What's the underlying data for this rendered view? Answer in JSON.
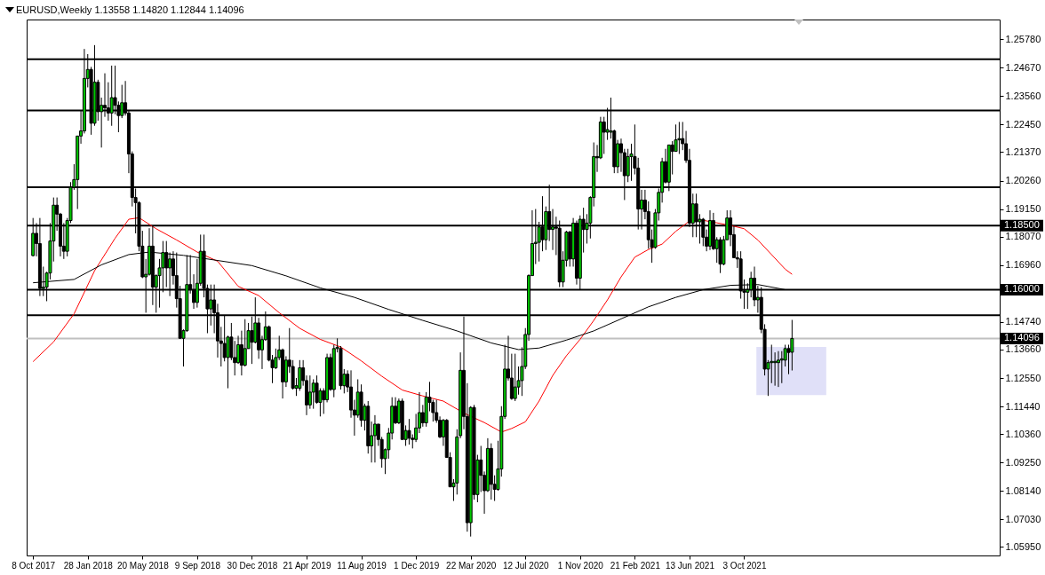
{
  "chart_data": {
    "type": "candlestick",
    "title": "EURUSD,Weekly  1.13558 1.14820 1.12844 1.14096",
    "colors": [
      "#00c800",
      "#000000",
      "#000000",
      "#00c800",
      "#00c800",
      "#00c800",
      "#00c800",
      "#000000",
      "#000000",
      "#000000",
      "#00c800",
      "#00c800",
      "#00c800",
      "#00c800",
      "#00c800",
      "#00c800",
      "#00c800",
      "#000000",
      "#00c800",
      "#000000",
      "#00c800",
      "#000000",
      "#000000",
      "#00c800",
      "#000000",
      "#000000",
      "#00c800",
      "#000000",
      "#000000",
      "#000000",
      "#000000",
      "#000000",
      "#000000",
      "#00c800",
      "#00c800",
      "#000000",
      "#00c800",
      "#00c800",
      "#00c800",
      "#000000",
      "#00c800",
      "#000000",
      "#000000",
      "#000000",
      "#00c800",
      "#00c800",
      "#000000",
      "#000000",
      "#00c800",
      "#00c800",
      "#000000",
      "#000000",
      "#00c800",
      "#000000",
      "#000000",
      "#000000",
      "#000000",
      "#00c800",
      "#000000",
      "#000000",
      "#00c800",
      "#000000",
      "#00c800",
      "#00c800",
      "#000000",
      "#00c800",
      "#000000",
      "#00c800",
      "#00c800",
      "#000000",
      "#000000",
      "#00c800",
      "#00c800",
      "#000000",
      "#00c800",
      "#000000",
      "#000000",
      "#00c800",
      "#00c800",
      "#000000",
      "#000000",
      "#00c800",
      "#00c800",
      "#000000",
      "#00c800",
      "#000000",
      "#00c800",
      "#000000",
      "#00c800",
      "#00c800",
      "#000000",
      "#00c800",
      "#000000",
      "#000000",
      "#000000",
      "#00c800",
      "#000000",
      "#00c800",
      "#000000",
      "#00c800",
      "#00c800",
      "#000000",
      "#000000",
      "#00c800",
      "#00c800",
      "#00c800",
      "#000000",
      "#00c800",
      "#000000",
      "#00c800",
      "#000000",
      "#000000",
      "#00c800",
      "#00c800",
      "#000000",
      "#00c800",
      "#000000",
      "#000000",
      "#000000",
      "#000000",
      "#00c800",
      "#000000",
      "#000000",
      "#00c800",
      "#00c800",
      "#00c800",
      "#000000",
      "#000000",
      "#00c800",
      "#000000",
      "#00c800",
      "#000000",
      "#000000",
      "#00c800",
      "#000000",
      "#000000",
      "#00c800",
      "#00c800",
      "#00c800",
      "#000000",
      "#000000",
      "#00c800",
      "#00c800",
      "#00c800",
      "#00c800",
      "#00c800",
      "#00c800",
      "#00c800",
      "#00c800",
      "#000000",
      "#00c800",
      "#000000",
      "#00c800",
      "#000000",
      "#000000",
      "#00c800",
      "#00c800",
      "#000000",
      "#00c800",
      "#000000",
      "#00c800",
      "#000000",
      "#00c800",
      "#00c800",
      "#00c800",
      "#000000",
      "#00c800",
      "#000000",
      "#00c800",
      "#00c800",
      "#000000",
      "#00c800",
      "#000000",
      "#000000",
      "#00c800",
      "#00c800",
      "#000000",
      "#000000",
      "#00c800",
      "#000000",
      "#000000",
      "#000000",
      "#00c800",
      "#00c800",
      "#00c800",
      "#000000",
      "#00c800",
      "#000000",
      "#00c800",
      "#00c800",
      "#000000",
      "#000000",
      "#000000",
      "#00c800",
      "#000000",
      "#00c800",
      "#000000",
      "#000000",
      "#00c800",
      "#000000",
      "#00c800",
      "#000000",
      "#00c800",
      "#00c800",
      "#000000",
      "#000000",
      "#000000",
      "#000000",
      "#000000",
      "#00c800",
      "#00c800",
      "#000000",
      "#00c800",
      "#000000",
      "#000000",
      "#00c800",
      "#00c800",
      "#00c800",
      "#00c800",
      "#00c800",
      "#00c800",
      "#000000",
      "#00c800"
    ],
    "x": [
      "2017-10-08",
      "2017-10-15",
      "2017-10-22",
      "2017-10-29",
      "2017-11-05",
      "2017-11-12",
      "2017-11-19",
      "2017-11-26",
      "2017-12-03",
      "2017-12-10",
      "2017-12-17",
      "2017-12-24",
      "2017-12-31",
      "2018-01-07",
      "2018-01-14",
      "2018-01-21",
      "2018-01-28",
      "2018-02-04",
      "2018-02-11",
      "2018-02-18",
      "2018-02-25",
      "2018-03-04",
      "2018-03-11",
      "2018-03-18",
      "2018-03-25",
      "2018-04-01",
      "2018-04-08",
      "2018-04-15",
      "2018-04-22",
      "2018-04-29",
      "2018-05-06",
      "2018-05-13",
      "2018-05-20",
      "2018-05-27",
      "2018-06-03",
      "2018-06-10",
      "2018-06-17",
      "2018-06-24",
      "2018-07-01",
      "2018-07-08",
      "2018-07-15",
      "2018-07-22",
      "2018-07-29",
      "2018-08-05",
      "2018-08-12",
      "2018-08-19",
      "2018-08-26",
      "2018-09-02",
      "2018-09-09",
      "2018-09-16",
      "2018-09-23",
      "2018-09-30",
      "2018-10-07",
      "2018-10-14",
      "2018-10-21",
      "2018-10-28",
      "2018-11-04",
      "2018-11-11",
      "2018-11-18",
      "2018-11-25",
      "2018-12-02",
      "2018-12-09",
      "2018-12-16",
      "2018-12-23",
      "2018-12-30",
      "2019-01-06",
      "2019-01-13",
      "2019-01-20",
      "2019-01-27",
      "2019-02-03",
      "2019-02-10",
      "2019-02-17",
      "2019-02-24",
      "2019-03-03",
      "2019-03-10",
      "2019-03-17",
      "2019-03-24",
      "2019-03-31",
      "2019-04-07",
      "2019-04-14",
      "2019-04-21",
      "2019-04-28",
      "2019-05-05",
      "2019-05-12",
      "2019-05-19",
      "2019-05-26",
      "2019-06-02",
      "2019-06-09",
      "2019-06-16",
      "2019-06-23",
      "2019-06-30",
      "2019-07-07",
      "2019-07-14",
      "2019-07-21",
      "2019-07-28",
      "2019-08-04",
      "2019-08-11",
      "2019-08-18",
      "2019-08-25",
      "2019-09-01",
      "2019-09-08",
      "2019-09-15",
      "2019-09-22",
      "2019-09-29",
      "2019-10-06",
      "2019-10-13",
      "2019-10-20",
      "2019-10-27",
      "2019-11-03",
      "2019-11-10",
      "2019-11-17",
      "2019-11-24",
      "2019-12-01",
      "2019-12-08",
      "2019-12-15",
      "2019-12-22",
      "2019-12-29",
      "2020-01-05",
      "2020-01-12",
      "2020-01-19",
      "2020-01-26",
      "2020-02-02",
      "2020-02-09",
      "2020-02-16",
      "2020-02-23",
      "2020-03-01",
      "2020-03-08",
      "2020-03-15",
      "2020-03-22",
      "2020-03-29",
      "2020-04-05",
      "2020-04-12",
      "2020-04-19",
      "2020-04-26",
      "2020-05-03",
      "2020-05-10",
      "2020-05-17",
      "2020-05-24",
      "2020-05-31",
      "2020-06-07",
      "2020-06-14",
      "2020-06-21",
      "2020-06-28",
      "2020-07-05",
      "2020-07-12",
      "2020-07-19",
      "2020-07-26",
      "2020-08-02",
      "2020-08-09",
      "2020-08-16",
      "2020-08-23",
      "2020-08-30",
      "2020-09-06",
      "2020-09-13",
      "2020-09-20",
      "2020-09-27",
      "2020-10-04",
      "2020-10-11",
      "2020-10-18",
      "2020-10-25",
      "2020-11-01",
      "2020-11-08",
      "2020-11-15",
      "2020-11-22",
      "2020-11-29",
      "2020-12-06",
      "2020-12-13",
      "2020-12-20",
      "2020-12-27",
      "2021-01-03",
      "2021-01-10",
      "2021-01-17",
      "2021-01-24",
      "2021-01-31",
      "2021-02-07",
      "2021-02-14",
      "2021-02-21",
      "2021-02-28",
      "2021-03-07",
      "2021-03-14",
      "2021-03-21",
      "2021-03-28",
      "2021-04-04",
      "2021-04-11",
      "2021-04-18",
      "2021-04-25",
      "2021-05-02",
      "2021-05-09",
      "2021-05-16",
      "2021-05-23",
      "2021-05-30",
      "2021-06-06",
      "2021-06-13",
      "2021-06-20",
      "2021-06-27",
      "2021-07-04",
      "2021-07-11",
      "2021-07-18",
      "2021-07-25",
      "2021-08-01",
      "2021-08-08",
      "2021-08-15",
      "2021-08-22",
      "2021-08-29",
      "2021-09-05",
      "2021-09-12",
      "2021-09-19",
      "2021-09-26",
      "2021-10-03",
      "2021-10-10",
      "2021-10-17",
      "2021-10-24",
      "2021-10-31",
      "2021-11-07",
      "2021-11-14",
      "2021-11-21",
      "2021-11-28",
      "2021-12-05",
      "2021-12-12",
      "2021-12-19",
      "2021-12-26",
      "2022-01-02",
      "2022-01-09"
    ],
    "ohlc": [
      [
        1.1733,
        1.188,
        1.173,
        1.182
      ],
      [
        1.182,
        1.186,
        1.173,
        1.178
      ],
      [
        1.178,
        1.188,
        1.1575,
        1.1605
      ],
      [
        1.1605,
        1.169,
        1.1575,
        1.161
      ],
      [
        1.161,
        1.167,
        1.1555,
        1.1665
      ],
      [
        1.1665,
        1.186,
        1.164,
        1.179
      ],
      [
        1.179,
        1.196,
        1.171,
        1.193
      ],
      [
        1.193,
        1.196,
        1.183,
        1.1895
      ],
      [
        1.1895,
        1.19,
        1.173,
        1.177
      ],
      [
        1.177,
        1.186,
        1.172,
        1.175
      ],
      [
        1.175,
        1.188,
        1.173,
        1.187
      ],
      [
        1.187,
        1.202,
        1.186,
        1.2
      ],
      [
        1.2,
        1.209,
        1.199,
        1.203
      ],
      [
        1.203,
        1.22,
        1.1915,
        1.22
      ],
      [
        1.22,
        1.23,
        1.217,
        1.222
      ],
      [
        1.222,
        1.254,
        1.221,
        1.2425
      ],
      [
        1.2425,
        1.252,
        1.239,
        1.246
      ],
      [
        1.246,
        1.247,
        1.2205,
        1.225
      ],
      [
        1.225,
        1.2555,
        1.224,
        1.241
      ],
      [
        1.241,
        1.242,
        1.226,
        1.2295
      ],
      [
        1.2295,
        1.235,
        1.2155,
        1.232
      ],
      [
        1.232,
        1.2445,
        1.2275,
        1.231
      ],
      [
        1.231,
        1.241,
        1.226,
        1.229
      ],
      [
        1.229,
        1.2475,
        1.224,
        1.235
      ],
      [
        1.235,
        1.2475,
        1.2285,
        1.232
      ],
      [
        1.232,
        1.2335,
        1.2215,
        1.228
      ],
      [
        1.228,
        1.24,
        1.227,
        1.233
      ],
      [
        1.233,
        1.2415,
        1.228,
        1.229
      ],
      [
        1.229,
        1.23,
        1.2055,
        1.213
      ],
      [
        1.213,
        1.214,
        1.1925,
        1.196
      ],
      [
        1.196,
        1.1995,
        1.182,
        1.194
      ],
      [
        1.194,
        1.1945,
        1.175,
        1.177
      ],
      [
        1.177,
        1.183,
        1.1645,
        1.165
      ],
      [
        1.165,
        1.172,
        1.151,
        1.166
      ],
      [
        1.166,
        1.184,
        1.1655,
        1.177
      ],
      [
        1.177,
        1.185,
        1.154,
        1.161
      ],
      [
        1.161,
        1.166,
        1.151,
        1.1655
      ],
      [
        1.1655,
        1.172,
        1.153,
        1.1685
      ],
      [
        1.1685,
        1.179,
        1.159,
        1.1745
      ],
      [
        1.1745,
        1.179,
        1.161,
        1.1685
      ],
      [
        1.1685,
        1.1745,
        1.1575,
        1.172
      ],
      [
        1.172,
        1.175,
        1.162,
        1.1655
      ],
      [
        1.1655,
        1.1745,
        1.153,
        1.1565
      ],
      [
        1.1565,
        1.1615,
        1.141,
        1.141
      ],
      [
        1.141,
        1.1445,
        1.13,
        1.144
      ],
      [
        1.144,
        1.1735,
        1.1435,
        1.162
      ],
      [
        1.162,
        1.1735,
        1.1585,
        1.16
      ],
      [
        1.16,
        1.166,
        1.1525,
        1.155
      ],
      [
        1.155,
        1.172,
        1.153,
        1.1625
      ],
      [
        1.1625,
        1.1815,
        1.1615,
        1.175
      ],
      [
        1.175,
        1.1815,
        1.157,
        1.1605
      ],
      [
        1.1605,
        1.162,
        1.143,
        1.1525
      ],
      [
        1.1525,
        1.162,
        1.146,
        1.156
      ],
      [
        1.156,
        1.162,
        1.143,
        1.151
      ],
      [
        1.151,
        1.1545,
        1.1335,
        1.14
      ],
      [
        1.14,
        1.1455,
        1.13,
        1.139
      ],
      [
        1.139,
        1.15,
        1.132,
        1.1335
      ],
      [
        1.1335,
        1.142,
        1.1215,
        1.1415
      ],
      [
        1.1415,
        1.147,
        1.1325,
        1.1335
      ],
      [
        1.1335,
        1.14,
        1.1265,
        1.1315
      ],
      [
        1.1315,
        1.142,
        1.131,
        1.1385
      ],
      [
        1.1385,
        1.144,
        1.1265,
        1.1305
      ],
      [
        1.1305,
        1.1485,
        1.13,
        1.137
      ],
      [
        1.137,
        1.147,
        1.137,
        1.144
      ],
      [
        1.144,
        1.1495,
        1.131,
        1.1395
      ],
      [
        1.1395,
        1.157,
        1.139,
        1.147
      ],
      [
        1.147,
        1.149,
        1.133,
        1.1365
      ],
      [
        1.1365,
        1.142,
        1.129,
        1.1405
      ],
      [
        1.1405,
        1.1515,
        1.14,
        1.1455
      ],
      [
        1.1455,
        1.146,
        1.132,
        1.1325
      ],
      [
        1.1325,
        1.1345,
        1.1235,
        1.1295
      ],
      [
        1.1295,
        1.137,
        1.129,
        1.1335
      ],
      [
        1.1335,
        1.142,
        1.1325,
        1.1365
      ],
      [
        1.1365,
        1.137,
        1.1175,
        1.124
      ],
      [
        1.124,
        1.134,
        1.122,
        1.1325
      ],
      [
        1.1325,
        1.145,
        1.1275,
        1.13
      ],
      [
        1.13,
        1.1325,
        1.121,
        1.1215
      ],
      [
        1.1215,
        1.1255,
        1.1185,
        1.1225
      ],
      [
        1.1215,
        1.1325,
        1.1205,
        1.1295
      ],
      [
        1.1295,
        1.1325,
        1.1225,
        1.1245
      ],
      [
        1.1245,
        1.1265,
        1.111,
        1.115
      ],
      [
        1.115,
        1.1265,
        1.1135,
        1.12
      ],
      [
        1.12,
        1.125,
        1.1135,
        1.1235
      ],
      [
        1.1235,
        1.1265,
        1.1155,
        1.116
      ],
      [
        1.116,
        1.1215,
        1.1105,
        1.1205
      ],
      [
        1.1205,
        1.1215,
        1.1115,
        1.117
      ],
      [
        1.117,
        1.135,
        1.116,
        1.1335
      ],
      [
        1.1335,
        1.135,
        1.1205,
        1.121
      ],
      [
        1.121,
        1.1385,
        1.118,
        1.137
      ],
      [
        1.137,
        1.141,
        1.1355,
        1.1375
      ],
      [
        1.137,
        1.138,
        1.121,
        1.1225
      ],
      [
        1.1225,
        1.129,
        1.1195,
        1.127
      ],
      [
        1.127,
        1.1285,
        1.12,
        1.122
      ],
      [
        1.122,
        1.1285,
        1.11,
        1.113
      ],
      [
        1.113,
        1.117,
        1.103,
        1.111
      ],
      [
        1.111,
        1.125,
        1.11,
        1.12
      ],
      [
        1.12,
        1.123,
        1.1065,
        1.109
      ],
      [
        1.109,
        1.1155,
        1.105,
        1.1145
      ],
      [
        1.1145,
        1.1165,
        1.096,
        1.099
      ],
      [
        1.099,
        1.1085,
        1.0925,
        1.103
      ],
      [
        1.103,
        1.111,
        1.0925,
        1.1075
      ],
      [
        1.1075,
        1.1075,
        1.099,
        1.1015
      ],
      [
        1.1015,
        1.1025,
        1.0905,
        1.094
      ],
      [
        1.094,
        1.098,
        1.088,
        1.0975
      ],
      [
        1.0975,
        1.106,
        1.094,
        1.104
      ],
      [
        1.104,
        1.118,
        1.1015,
        1.1145
      ],
      [
        1.1145,
        1.118,
        1.1075,
        1.108
      ],
      [
        1.108,
        1.1175,
        1.1075,
        1.1165
      ],
      [
        1.1165,
        1.1175,
        1.1015,
        1.1015
      ],
      [
        1.1015,
        1.107,
        1.099,
        1.105
      ],
      [
        1.105,
        1.1095,
        1.0995,
        1.102
      ],
      [
        1.102,
        1.1035,
        1.098,
        1.1015
      ],
      [
        1.1015,
        1.1115,
        1.1005,
        1.106
      ],
      [
        1.106,
        1.12,
        1.104,
        1.112
      ],
      [
        1.112,
        1.115,
        1.1065,
        1.108
      ],
      [
        1.108,
        1.12,
        1.1065,
        1.118
      ],
      [
        1.118,
        1.124,
        1.1125,
        1.116
      ],
      [
        1.116,
        1.117,
        1.1085,
        1.112
      ],
      [
        1.112,
        1.117,
        1.108,
        1.109
      ],
      [
        1.109,
        1.1105,
        1.102,
        1.1025
      ],
      [
        1.1025,
        1.1095,
        1.099,
        1.109
      ],
      [
        1.109,
        1.1095,
        1.0945,
        1.0945
      ],
      [
        1.0945,
        1.0965,
        1.083,
        1.083
      ],
      [
        1.083,
        1.086,
        1.0775,
        1.0845
      ],
      [
        1.0845,
        1.1055,
        1.08,
        1.1025
      ],
      [
        1.103,
        1.1355,
        1.102,
        1.1285
      ],
      [
        1.1285,
        1.1495,
        1.1055,
        1.1105
      ],
      [
        1.1105,
        1.1235,
        1.0655,
        1.069
      ],
      [
        1.069,
        1.1145,
        1.0636,
        1.114
      ],
      [
        1.114,
        1.115,
        1.078,
        1.08
      ],
      [
        1.08,
        1.0955,
        1.077,
        1.0935
      ],
      [
        1.0935,
        1.099,
        1.081,
        1.0875
      ],
      [
        1.0875,
        1.089,
        1.0725,
        1.0815
      ],
      [
        1.0815,
        1.102,
        1.081,
        1.098
      ],
      [
        1.098,
        1.1,
        1.078,
        1.084
      ],
      [
        1.084,
        1.0875,
        1.0775,
        1.082
      ],
      [
        1.082,
        1.101,
        1.0815,
        1.09
      ],
      [
        1.09,
        1.1145,
        1.087,
        1.1105
      ],
      [
        1.1105,
        1.1385,
        1.1095,
        1.129
      ],
      [
        1.129,
        1.142,
        1.1245,
        1.1255
      ],
      [
        1.1255,
        1.135,
        1.117,
        1.1175
      ],
      [
        1.1175,
        1.135,
        1.1165,
        1.122
      ],
      [
        1.122,
        1.13,
        1.119,
        1.1245
      ],
      [
        1.1245,
        1.1375,
        1.1185,
        1.13
      ],
      [
        1.13,
        1.145,
        1.129,
        1.1425
      ],
      [
        1.1425,
        1.166,
        1.14,
        1.1655
      ],
      [
        1.1655,
        1.191,
        1.1655,
        1.178
      ],
      [
        1.178,
        1.1915,
        1.17,
        1.1785
      ],
      [
        1.1785,
        1.1865,
        1.171,
        1.1845
      ],
      [
        1.1845,
        1.1965,
        1.175,
        1.1795
      ],
      [
        1.1795,
        1.1925,
        1.1755,
        1.1905
      ],
      [
        1.1905,
        1.201,
        1.179,
        1.1835
      ],
      [
        1.1835,
        1.1915,
        1.1755,
        1.1845
      ],
      [
        1.1845,
        1.1885,
        1.1735,
        1.184
      ],
      [
        1.184,
        1.187,
        1.161,
        1.163
      ],
      [
        1.163,
        1.175,
        1.161,
        1.1715
      ],
      [
        1.1715,
        1.183,
        1.169,
        1.1825
      ],
      [
        1.1825,
        1.183,
        1.169,
        1.172
      ],
      [
        1.172,
        1.188,
        1.169,
        1.186
      ],
      [
        1.186,
        1.187,
        1.162,
        1.1645
      ],
      [
        1.1645,
        1.189,
        1.16,
        1.1875
      ],
      [
        1.1875,
        1.192,
        1.1745,
        1.1835
      ],
      [
        1.1835,
        1.1895,
        1.178,
        1.186
      ],
      [
        1.186,
        1.1965,
        1.18,
        1.196
      ],
      [
        1.196,
        1.2175,
        1.1925,
        1.212
      ],
      [
        1.212,
        1.2165,
        1.206,
        1.2115
      ],
      [
        1.2115,
        1.2275,
        1.211,
        1.2255
      ],
      [
        1.2255,
        1.2275,
        1.213,
        1.2215
      ],
      [
        1.2215,
        1.231,
        1.2185,
        1.2225
      ],
      [
        1.2215,
        1.235,
        1.219,
        1.222
      ],
      [
        1.222,
        1.2225,
        1.2055,
        1.208
      ],
      [
        1.208,
        1.2185,
        1.2055,
        1.217
      ],
      [
        1.217,
        1.219,
        1.206,
        1.2135
      ],
      [
        1.2135,
        1.215,
        1.195,
        1.2045
      ],
      [
        1.2045,
        1.215,
        1.202,
        1.212
      ],
      [
        1.212,
        1.217,
        1.2025,
        1.213
      ],
      [
        1.212,
        1.2245,
        1.205,
        1.2075
      ],
      [
        1.2075,
        1.2115,
        1.1835,
        1.1915
      ],
      [
        1.1915,
        1.199,
        1.1835,
        1.195
      ],
      [
        1.195,
        1.199,
        1.1875,
        1.1905
      ],
      [
        1.1905,
        1.1945,
        1.176,
        1.1795
      ],
      [
        1.1795,
        1.1835,
        1.1705,
        1.1765
      ],
      [
        1.1765,
        1.1915,
        1.176,
        1.19
      ],
      [
        1.19,
        1.1995,
        1.187,
        1.198
      ],
      [
        1.198,
        1.2115,
        1.194,
        1.21
      ],
      [
        1.21,
        1.215,
        1.2015,
        1.202
      ],
      [
        1.202,
        1.2165,
        1.1985,
        1.2165
      ],
      [
        1.2165,
        1.218,
        1.205,
        1.214
      ],
      [
        1.214,
        1.2245,
        1.214,
        1.2185
      ],
      [
        1.2185,
        1.2255,
        1.213,
        1.219
      ],
      [
        1.219,
        1.2255,
        1.2145,
        1.217
      ],
      [
        1.217,
        1.222,
        1.2095,
        1.2105
      ],
      [
        1.2105,
        1.215,
        1.1845,
        1.186
      ],
      [
        1.186,
        1.1975,
        1.1805,
        1.1935
      ],
      [
        1.1935,
        1.1975,
        1.1805,
        1.1865
      ],
      [
        1.1865,
        1.1895,
        1.178,
        1.1875
      ],
      [
        1.1875,
        1.188,
        1.177,
        1.1805
      ],
      [
        1.1805,
        1.1835,
        1.175,
        1.177
      ],
      [
        1.177,
        1.191,
        1.1755,
        1.187
      ],
      [
        1.187,
        1.19,
        1.1755,
        1.176
      ],
      [
        1.176,
        1.1805,
        1.1705,
        1.1795
      ],
      [
        1.1795,
        1.1805,
        1.1665,
        1.17
      ],
      [
        1.17,
        1.181,
        1.1695,
        1.1795
      ],
      [
        1.1795,
        1.191,
        1.1795,
        1.188
      ],
      [
        1.188,
        1.191,
        1.177,
        1.1815
      ],
      [
        1.1815,
        1.185,
        1.1725,
        1.1725
      ],
      [
        1.1725,
        1.175,
        1.1685,
        1.172
      ],
      [
        1.172,
        1.175,
        1.1565,
        1.1595
      ],
      [
        1.1595,
        1.164,
        1.1525,
        1.159
      ],
      [
        1.159,
        1.1625,
        1.1525,
        1.16
      ],
      [
        1.16,
        1.167,
        1.157,
        1.1645
      ],
      [
        1.1645,
        1.169,
        1.1535,
        1.156
      ],
      [
        1.156,
        1.1615,
        1.151,
        1.157
      ],
      [
        1.157,
        1.161,
        1.143,
        1.1445
      ],
      [
        1.1445,
        1.1465,
        1.1265,
        1.129
      ],
      [
        1.129,
        1.1325,
        1.1185,
        1.1315
      ],
      [
        1.1315,
        1.1385,
        1.1235,
        1.132
      ],
      [
        1.1315,
        1.1355,
        1.1225,
        1.132
      ],
      [
        1.1315,
        1.136,
        1.122,
        1.1325
      ],
      [
        1.1325,
        1.136,
        1.1235,
        1.133
      ],
      [
        1.1325,
        1.1385,
        1.13,
        1.137
      ],
      [
        1.137,
        1.1385,
        1.127,
        1.1355
      ],
      [
        1.13558,
        1.1482,
        1.12844,
        1.14096
      ]
    ],
    "series": [
      {
        "type": "area",
        "color": "#e0e0f8",
        "x": [
          "2021-10-28",
          "2022-03-20"
        ],
        "values": [
          null,
          null
        ],
        "lower": [
          1.1188,
          1.1188
        ],
        "upper": [
          1.1376,
          1.1376
        ]
      },
      {
        "type": "line",
        "color": "#ff0000",
        "x": [
          "2017-10-08",
          "2017-11-19",
          "2017-12-31",
          "2018-02-11",
          "2018-03-25",
          "2018-04-22",
          "2018-05-13",
          "2018-06-17",
          "2018-07-29",
          "2018-09-09",
          "2018-10-21",
          "2018-12-02",
          "2019-01-13",
          "2019-02-24",
          "2019-04-07",
          "2019-05-19",
          "2019-06-30",
          "2019-08-11",
          "2019-09-22",
          "2019-11-03",
          "2019-12-15",
          "2020-01-26",
          "2020-03-08",
          "2020-04-19",
          "2020-05-24",
          "2020-06-14",
          "2020-07-12",
          "2020-08-09",
          "2020-09-06",
          "2020-10-04",
          "2020-11-01",
          "2020-11-29",
          "2020-12-27",
          "2021-01-24",
          "2021-02-21",
          "2021-03-21",
          "2021-04-18",
          "2021-05-16",
          "2021-06-13",
          "2021-07-11",
          "2021-08-08",
          "2021-09-05",
          "2021-10-03",
          "2021-10-31",
          "2021-11-28",
          "2021-12-26",
          "2022-01-09"
        ],
        "values": [
          1.1319,
          1.1396,
          1.1506,
          1.1674,
          1.1801,
          1.1875,
          1.1881,
          1.1838,
          1.1794,
          1.1747,
          1.1711,
          1.1613,
          1.1577,
          1.151,
          1.1449,
          1.1406,
          1.1376,
          1.1322,
          1.1262,
          1.1208,
          1.1185,
          1.1165,
          1.1118,
          1.1081,
          1.1044,
          1.1058,
          1.1084,
          1.1165,
          1.1265,
          1.1342,
          1.1406,
          1.148,
          1.156,
          1.165,
          1.1727,
          1.1757,
          1.1778,
          1.1828,
          1.1868,
          1.1871,
          1.1861,
          1.1851,
          1.1838,
          1.1794,
          1.1737,
          1.168,
          1.166
        ]
      },
      {
        "type": "line",
        "color": "#000000",
        "x": [
          "2017-10-08",
          "2017-12-31",
          "2018-02-25",
          "2018-04-22",
          "2018-06-03",
          "2018-08-12",
          "2018-10-21",
          "2018-12-30",
          "2019-03-10",
          "2019-05-19",
          "2019-07-28",
          "2019-10-06",
          "2019-12-15",
          "2020-02-23",
          "2020-05-03",
          "2020-06-28",
          "2020-08-09",
          "2020-10-04",
          "2020-11-29",
          "2021-01-24",
          "2021-03-21",
          "2021-05-16",
          "2021-07-11",
          "2021-09-05",
          "2021-10-31",
          "2021-12-26"
        ],
        "values": [
          1.1627,
          1.164,
          1.1697,
          1.1737,
          1.1747,
          1.1734,
          1.1714,
          1.1694,
          1.1654,
          1.1607,
          1.157,
          1.1523,
          1.148,
          1.1439,
          1.1392,
          1.1366,
          1.1372,
          1.1403,
          1.1439,
          1.1486,
          1.1533,
          1.157,
          1.16,
          1.1617,
          1.162,
          1.16
        ]
      }
    ],
    "ref_lines": [
      {
        "axis": "y",
        "value": 1.25,
        "color": "#000000"
      },
      {
        "axis": "y",
        "value": 1.23,
        "color": "#000000"
      },
      {
        "axis": "y",
        "value": 1.2,
        "color": "#000000"
      },
      {
        "axis": "y",
        "value": 1.185,
        "label": "1.18500",
        "color": "#000000"
      },
      {
        "axis": "y",
        "value": 1.16,
        "label": "1.16000",
        "color": "#000000"
      },
      {
        "axis": "y",
        "value": 1.15,
        "color": "#000000"
      },
      {
        "axis": "y",
        "value": 1.14096,
        "label": "1.14096",
        "color": "#c0c0c0"
      }
    ],
    "xlim": [
      "2017-10-04",
      "2023-03-01"
    ],
    "xticks": [
      {
        "value": "2017-10-08",
        "label": "8 Oct 2017"
      },
      {
        "value": "2018-01-28",
        "label": "28 Jan 2018"
      },
      {
        "value": "2018-05-20",
        "label": "20 May 2018"
      },
      {
        "value": "2018-09-09",
        "label": "9 Sep 2018"
      },
      {
        "value": "2018-12-30",
        "label": "30 Dec 2018"
      },
      {
        "value": "2019-04-21",
        "label": "21 Apr 2019"
      },
      {
        "value": "2019-08-11",
        "label": "11 Aug 2019"
      },
      {
        "value": "2019-12-01",
        "label": "1 Dec 2019"
      },
      {
        "value": "2020-03-22",
        "label": "22 Mar 2020"
      },
      {
        "value": "2020-07-12",
        "label": "12 Jul 2020"
      },
      {
        "value": "2020-11-01",
        "label": "1 Nov 2020"
      },
      {
        "value": "2021-02-21",
        "label": "21 Feb 2021"
      },
      {
        "value": "2021-06-13",
        "label": "13 Jun 2021"
      },
      {
        "value": "2021-10-03",
        "label": "3 Oct 2021"
      }
    ],
    "ylim": [
      1.0562,
      1.2655
    ],
    "yticks": [
      {
        "value": 1.2578,
        "label": "1.25780"
      },
      {
        "value": 1.2467,
        "label": "1.24670"
      },
      {
        "value": 1.2356,
        "label": "1.23560"
      },
      {
        "value": 1.2245,
        "label": "1.22450"
      },
      {
        "value": 1.2137,
        "label": "1.21370"
      },
      {
        "value": 1.2026,
        "label": "1.20260"
      },
      {
        "value": 1.1915,
        "label": "1.19150"
      },
      {
        "value": 1.1807,
        "label": "1.18070"
      },
      {
        "value": 1.1696,
        "label": "1.16960"
      },
      {
        "value": 1.1474,
        "label": "1.14740"
      },
      {
        "value": 1.1366,
        "label": "1.13660"
      },
      {
        "value": 1.1255,
        "label": "1.12550"
      },
      {
        "value": 1.1144,
        "label": "1.11440"
      },
      {
        "value": 1.1036,
        "label": "1.10360"
      },
      {
        "value": 1.0925,
        "label": "1.09250"
      },
      {
        "value": 1.0814,
        "label": "1.08140"
      },
      {
        "value": 1.0703,
        "label": "1.07030"
      },
      {
        "value": 1.0595,
        "label": "1.05950"
      }
    ]
  }
}
